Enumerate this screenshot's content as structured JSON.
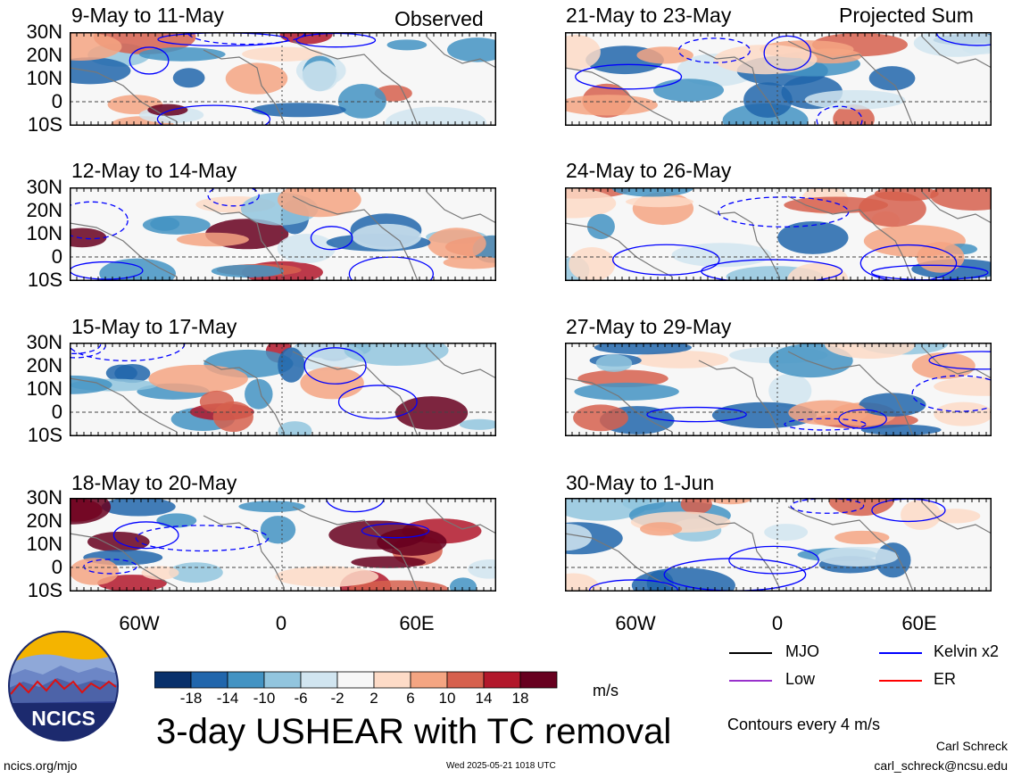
{
  "panels": [
    {
      "title": "9-May to 11-May",
      "tag": "Observed"
    },
    {
      "title": "12-May to 14-May",
      "tag": ""
    },
    {
      "title": "15-May to 17-May",
      "tag": ""
    },
    {
      "title": "18-May to 20-May",
      "tag": ""
    },
    {
      "title": "21-May to 23-May",
      "tag": "Projected Sum"
    },
    {
      "title": "24-May to 26-May",
      "tag": ""
    },
    {
      "title": "27-May to 29-May",
      "tag": ""
    },
    {
      "title": "30-May to 1-Jun",
      "tag": ""
    }
  ],
  "lat_labels": [
    "30N",
    "20N",
    "10N",
    "0",
    "10S"
  ],
  "lon_labels": [
    "60W",
    "0",
    "60E"
  ],
  "colorbar": {
    "labels": [
      "-18",
      "-14",
      "-10",
      "-6",
      "-2",
      "2",
      "6",
      "10",
      "14",
      "18"
    ],
    "colors": [
      "#08306b",
      "#2166ac",
      "#4393c3",
      "#92c5de",
      "#d1e5f0",
      "#f7f7f7",
      "#fddbc7",
      "#f4a582",
      "#d6604d",
      "#b2182b",
      "#67001f"
    ],
    "units": "m/s"
  },
  "title": "3-day USHEAR with TC removal",
  "legend": {
    "items": [
      {
        "label": "MJO",
        "color": "#000000"
      },
      {
        "label": "Kelvin x2",
        "color": "#0000ff"
      },
      {
        "label": "Low",
        "color": "#9932cc"
      },
      {
        "label": "ER",
        "color": "#ff0000"
      }
    ],
    "contours": "Contours every 4 m/s"
  },
  "footer": {
    "site": "ncics.org/mjo",
    "timestamp": "Wed 2025-05-21 1018 UTC",
    "author": "Carl Schreck",
    "email": "carl_schreck@ncsu.edu"
  },
  "logo_text": "NCICS"
}
